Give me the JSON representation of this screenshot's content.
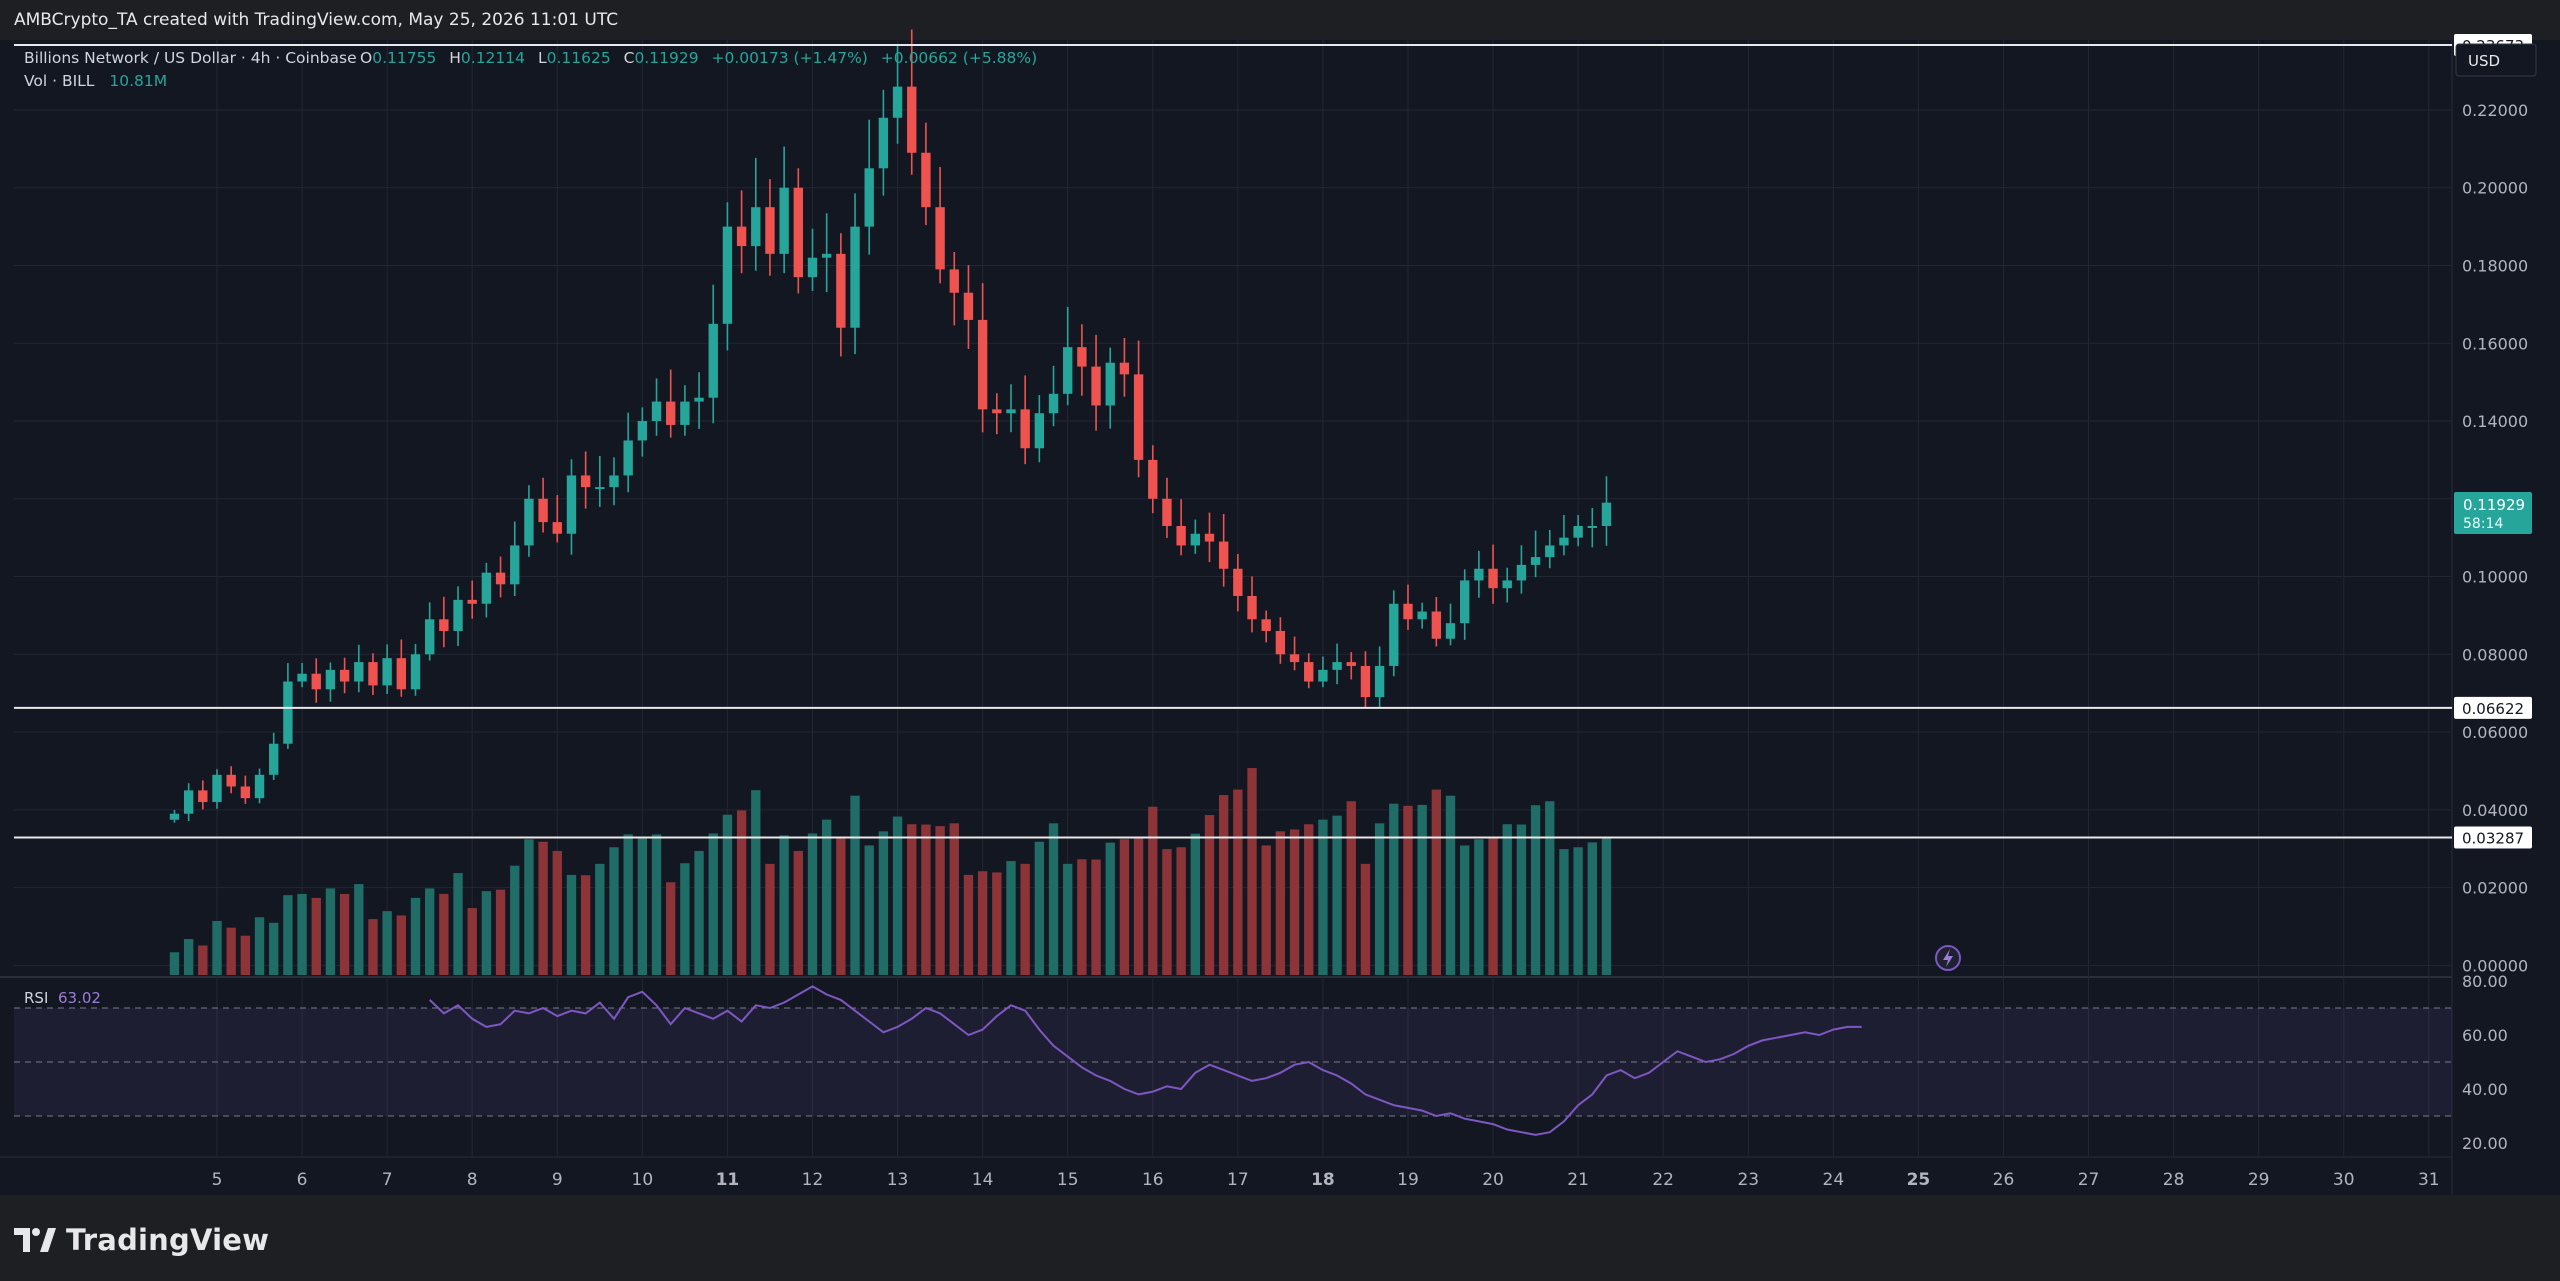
{
  "header": {
    "caption": "AMBCrypto_TA created with TradingView.com, May 25, 2026 11:01 UTC"
  },
  "legend": {
    "symbol": "Billions Network / US Dollar · 4h · Coinbase",
    "o_key": "O",
    "o_val": "0.11755",
    "h_key": "H",
    "h_val": "0.12114",
    "l_key": "L",
    "l_val": "0.11625",
    "c_key": "C",
    "c_val": "0.11929",
    "change": "+0.00173 (+1.47%)",
    "change2": "+0.00662 (+5.88%)",
    "vol_label": "Vol · BILL",
    "vol_value": "10.81M"
  },
  "currency_button": "USD",
  "price_scale": [
    "0.22000",
    "0.20000",
    "0.18000",
    "0.16000",
    "0.14000",
    "0.12000",
    "0.10000",
    "0.08000",
    "0.06000",
    "0.04000",
    "0.02000",
    "0.00000"
  ],
  "hlines": [
    {
      "label": "0.23673",
      "value": 0.23673
    },
    {
      "label": "0.06622",
      "value": 0.06622
    },
    {
      "label": "0.03287",
      "value": 0.03287
    }
  ],
  "last_price": {
    "value": "0.11929",
    "countdown": "58:14"
  },
  "rsi": {
    "label": "RSI",
    "value": "63.02",
    "scale": [
      "80.00",
      "60.00",
      "40.00",
      "20.00"
    ],
    "upper": 70,
    "middle": 50,
    "lower": 30
  },
  "x_axis": [
    {
      "label": "5",
      "day": 5,
      "bold": false
    },
    {
      "label": "6",
      "day": 6,
      "bold": false
    },
    {
      "label": "7",
      "day": 7,
      "bold": false
    },
    {
      "label": "8",
      "day": 8,
      "bold": false
    },
    {
      "label": "9",
      "day": 9,
      "bold": false
    },
    {
      "label": "10",
      "day": 10,
      "bold": false
    },
    {
      "label": "11",
      "day": 11,
      "bold": true
    },
    {
      "label": "12",
      "day": 12,
      "bold": false
    },
    {
      "label": "13",
      "day": 13,
      "bold": false
    },
    {
      "label": "14",
      "day": 14,
      "bold": false
    },
    {
      "label": "15",
      "day": 15,
      "bold": false
    },
    {
      "label": "16",
      "day": 16,
      "bold": false
    },
    {
      "label": "17",
      "day": 17,
      "bold": false
    },
    {
      "label": "18",
      "day": 18,
      "bold": true
    },
    {
      "label": "19",
      "day": 19,
      "bold": false
    },
    {
      "label": "20",
      "day": 20,
      "bold": false
    },
    {
      "label": "21",
      "day": 21,
      "bold": false
    },
    {
      "label": "22",
      "day": 22,
      "bold": false
    },
    {
      "label": "23",
      "day": 23,
      "bold": false
    },
    {
      "label": "24",
      "day": 24,
      "bold": false
    },
    {
      "label": "25",
      "day": 25,
      "bold": true
    },
    {
      "label": "26",
      "day": 26,
      "bold": false
    },
    {
      "label": "27",
      "day": 27,
      "bold": false
    },
    {
      "label": "28",
      "day": 28,
      "bold": false
    },
    {
      "label": "29",
      "day": 29,
      "bold": false
    },
    {
      "label": "30",
      "day": 30,
      "bold": false
    },
    {
      "label": "31",
      "day": 31,
      "bold": false
    }
  ],
  "footer": {
    "brand": "TradingView"
  },
  "colors": {
    "up": "#26a69a",
    "down": "#ef5350",
    "vol_up": "#1f6d66",
    "vol_down": "#8c3438",
    "rsi_line": "#7e57c2",
    "background": "#131722",
    "grid": "#232733"
  },
  "chart_data": {
    "type": "candlestick",
    "interval": "4h",
    "first_candle_day": 4.5,
    "candles_per_day": 6,
    "close_path": [
      0.039,
      0.045,
      0.042,
      0.049,
      0.046,
      0.043,
      0.049,
      0.057,
      0.073,
      0.075,
      0.071,
      0.076,
      0.073,
      0.078,
      0.072,
      0.079,
      0.071,
      0.08,
      0.089,
      0.086,
      0.094,
      0.093,
      0.101,
      0.098,
      0.108,
      0.12,
      0.114,
      0.111,
      0.126,
      0.123,
      0.123,
      0.126,
      0.135,
      0.14,
      0.145,
      0.139,
      0.145,
      0.146,
      0.165,
      0.19,
      0.185,
      0.195,
      0.183,
      0.2,
      0.177,
      0.182,
      0.183,
      0.164,
      0.19,
      0.205,
      0.218,
      0.226,
      0.209,
      0.195,
      0.179,
      0.173,
      0.166,
      0.143,
      0.142,
      0.143,
      0.133,
      0.142,
      0.147,
      0.159,
      0.154,
      0.144,
      0.155,
      0.152,
      0.13,
      0.12,
      0.113,
      0.108,
      0.111,
      0.109,
      0.102,
      0.095,
      0.089,
      0.086,
      0.08,
      0.078,
      0.073,
      0.076,
      0.078,
      0.077,
      0.069,
      0.077,
      0.093,
      0.089,
      0.091,
      0.084,
      0.088,
      0.099,
      0.102,
      0.097,
      0.099,
      0.103,
      0.105,
      0.108,
      0.11,
      0.113,
      0.113,
      0.119
    ],
    "high": 0.23673,
    "low_mark": 0.06622,
    "y_range": [
      -0.003,
      0.238
    ],
    "volume_profile": [
      4,
      7,
      5,
      10,
      8,
      6,
      9,
      12,
      18,
      17,
      15,
      16,
      14,
      15,
      13,
      14,
      12,
      15,
      16,
      14,
      17,
      16,
      19,
      18,
      22,
      26,
      24,
      21,
      25,
      23,
      24,
      26,
      27,
      25,
      24,
      23,
      26,
      27,
      29,
      31,
      30,
      32,
      28,
      33,
      27,
      29,
      30,
      25,
      31,
      33,
      34,
      35,
      31,
      29,
      27,
      26,
      25,
      24,
      22,
      23,
      21,
      24,
      26,
      28,
      27,
      25,
      27,
      26,
      25,
      29,
      32,
      30,
      31,
      33,
      35,
      34,
      36,
      33,
      34,
      32,
      31,
      30,
      29,
      30,
      28,
      36,
      38,
      35,
      33,
      34,
      31,
      33,
      32,
      30,
      31,
      29,
      31,
      30,
      32,
      30,
      29,
      28
    ],
    "rsi_path": [
      73,
      68,
      71,
      66,
      63,
      64,
      69,
      68,
      70,
      67,
      69,
      68,
      72,
      66,
      74,
      76,
      71,
      64,
      70,
      68,
      66,
      69,
      65,
      71,
      70,
      72,
      75,
      78,
      75,
      73,
      69,
      65,
      61,
      63,
      66,
      70,
      68,
      64,
      60,
      62,
      67,
      71,
      69,
      62,
      56,
      52,
      48,
      45,
      43,
      40,
      38,
      39,
      41,
      40,
      46,
      49,
      47,
      45,
      43,
      44,
      46,
      49,
      50,
      47,
      45,
      42,
      38,
      36,
      34,
      33,
      32,
      30,
      31,
      29,
      28,
      27,
      25,
      24,
      23,
      24,
      28,
      34,
      38,
      45,
      47,
      44,
      46,
      50,
      54,
      52,
      50,
      51,
      53,
      56,
      58,
      59,
      60,
      61,
      60,
      62,
      63,
      63
    ]
  }
}
